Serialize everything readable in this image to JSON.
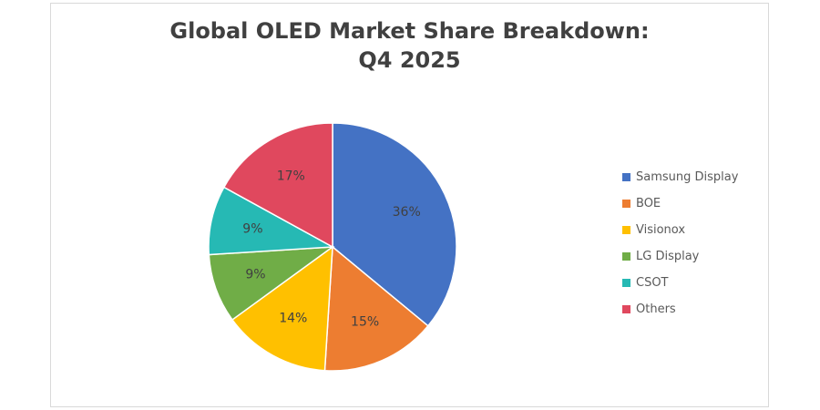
{
  "chart_data": {
    "type": "pie",
    "title_lines": [
      "Global OLED Market Share Breakdown:",
      "Q4 2025"
    ],
    "categories": [
      "Samsung Display",
      "BOE",
      "Visionox",
      "LG Display",
      "CSOT",
      "Others"
    ],
    "values": [
      36,
      15,
      14,
      9,
      9,
      17
    ],
    "labels": [
      "36%",
      "15%",
      "14%",
      "9%",
      "9%",
      "17%"
    ],
    "colors": [
      "#4472C4",
      "#ED7D31",
      "#FFC000",
      "#70AD47",
      "#26B9B4",
      "#E0485E"
    ],
    "legend_position": "right"
  }
}
